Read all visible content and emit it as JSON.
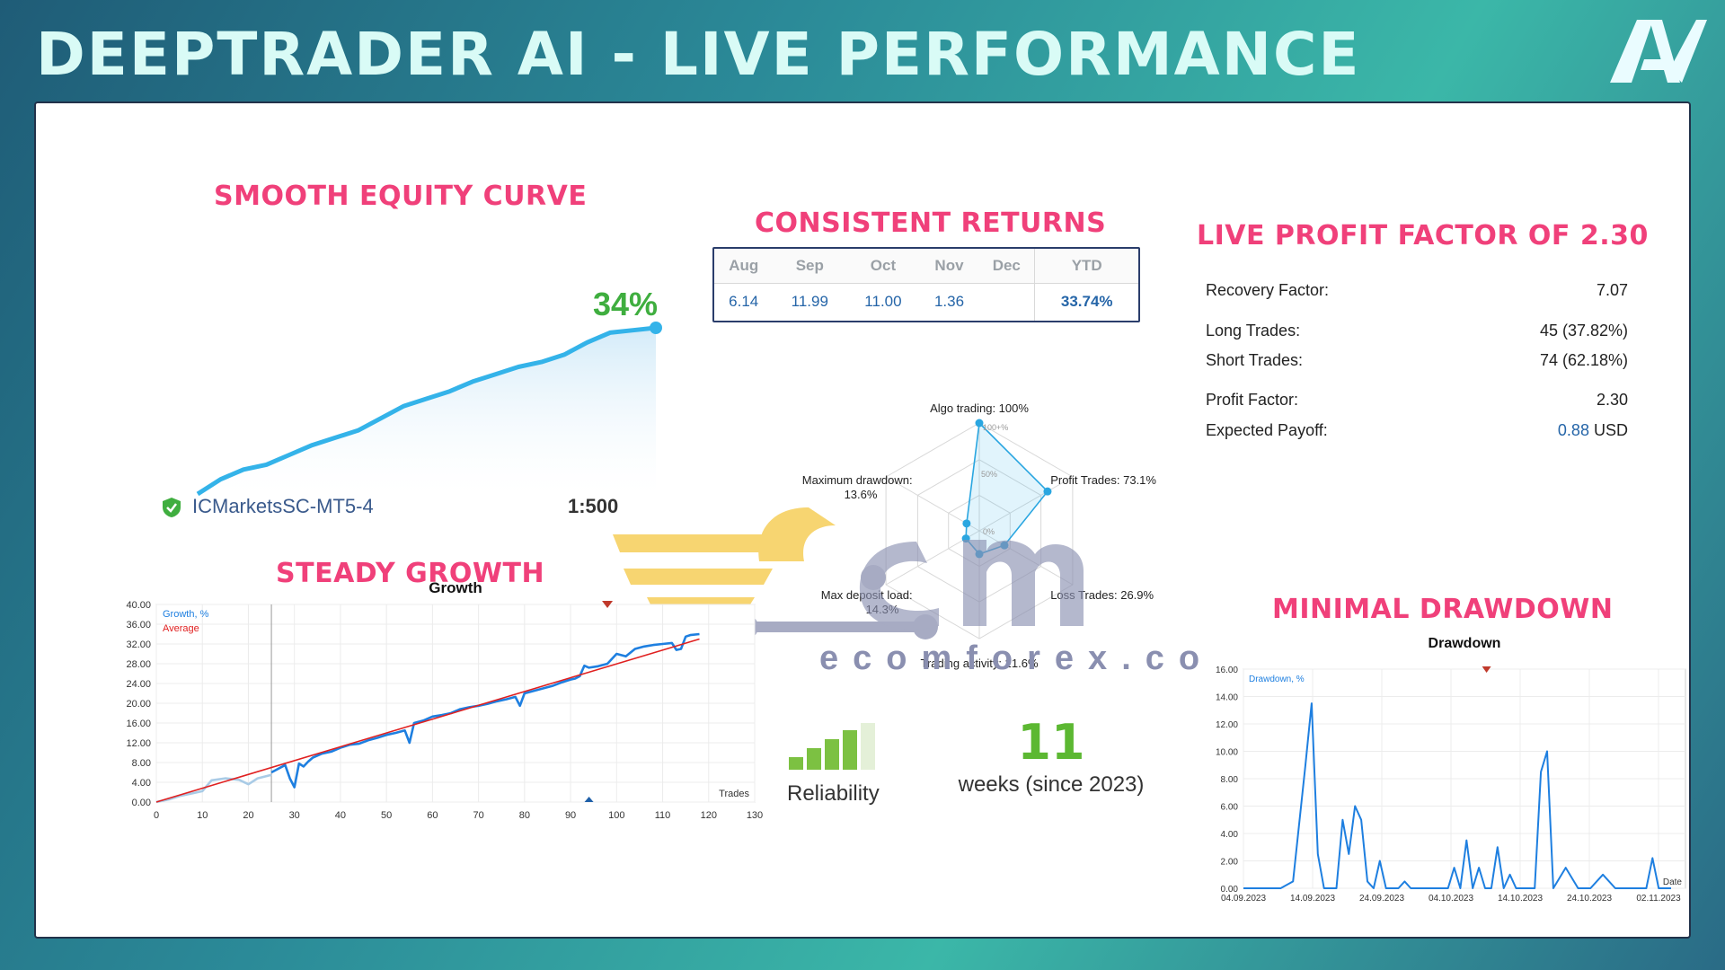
{
  "header": {
    "title": "DEEPTRADER AI - LIVE PERFORMANCE",
    "logo": "AV"
  },
  "sections": {
    "equity": "SMOOTH EQUITY CURVE",
    "returns": "CONSISTENT RETURNS",
    "profit_factor": "LIVE PROFIT FACTOR OF 2.30",
    "growth": "STEADY GROWTH",
    "drawdown": "MINIMAL DRAWDOWN"
  },
  "equity": {
    "percent": "34%",
    "broker": "ICMarketsSC-MT5-4",
    "leverage": "1:500"
  },
  "returns": {
    "headers": [
      "Aug",
      "Sep",
      "Oct",
      "Nov",
      "Dec",
      "YTD"
    ],
    "values": [
      "6.14",
      "11.99",
      "11.00",
      "1.36",
      "",
      "33.74%"
    ]
  },
  "stats": {
    "recovery_label": "Recovery Factor:",
    "recovery_value": "7.07",
    "long_label": "Long Trades:",
    "long_value": "45 (37.82%)",
    "short_label": "Short Trades:",
    "short_value": "74 (62.18%)",
    "pf_label": "Profit Factor:",
    "pf_value": "2.30",
    "payoff_label": "Expected Payoff:",
    "payoff_value": "0.88",
    "payoff_unit": "USD"
  },
  "radar": {
    "algo": "Algo trading: 100%",
    "profit": "Profit Trades: 73.1%",
    "loss": "Loss Trades: 26.9%",
    "activity": "Trading activity: 21.6%",
    "deposit_l1": "Max deposit load:",
    "deposit_l2": "14.3%",
    "maxdd_l1": "Maximum drawdown:",
    "maxdd_l2": "13.6%",
    "ring_100": "100+%",
    "ring_50": "50%",
    "ring_0": "0%"
  },
  "watermark": {
    "text": "ecomforex.com"
  },
  "reliability": {
    "label": "Reliability",
    "bars_filled": 4,
    "bars_total": 5
  },
  "weeks": {
    "value": "11",
    "label": "weeks (since 2023)"
  },
  "colors": {
    "accent_pink": "#f0407a",
    "equity_blue": "#34b3e9",
    "growth_blue": "#1e7fe0",
    "average_red": "#e02020",
    "reliability_green": "#7cc142",
    "weeks_green": "#5cb832",
    "percent_green": "#3fae3f"
  },
  "chart_data": [
    {
      "type": "area",
      "name": "equity",
      "title": "SMOOTH EQUITY CURVE",
      "x": [
        0,
        1,
        2,
        3,
        4,
        5,
        6,
        7,
        8,
        9,
        10,
        11,
        12,
        13,
        14,
        15,
        16,
        17,
        18,
        19,
        20
      ],
      "y": [
        0,
        3,
        5,
        6,
        8,
        10,
        11.5,
        13,
        15.5,
        18,
        19.5,
        21,
        23,
        24.5,
        26,
        27,
        28.5,
        31,
        33,
        33.5,
        34
      ],
      "end_label": "34%"
    },
    {
      "type": "line",
      "title": "Growth",
      "xlabel": "Trades",
      "xlim": [
        0,
        130
      ],
      "ylim": [
        0,
        40
      ],
      "xticks": [
        "0",
        "10",
        "20",
        "30",
        "40",
        "50",
        "60",
        "70",
        "80",
        "90",
        "100",
        "110",
        "120",
        "130"
      ],
      "yticks": [
        "0.00",
        "4.00",
        "8.00",
        "12.00",
        "16.00",
        "20.00",
        "24.00",
        "28.00",
        "32.00",
        "36.00",
        "40.00"
      ],
      "legend": [
        "Growth, %",
        "Average"
      ],
      "series": [
        {
          "name": "Growth, %",
          "x": [
            0,
            3,
            5,
            8,
            10,
            12,
            15,
            18,
            20,
            22,
            25
          ],
          "y": [
            0,
            0.6,
            1.2,
            1.8,
            2.2,
            4.4,
            4.8,
            4.5,
            3.6,
            4.8,
            5.5
          ],
          "color": "#a9cbe6"
        },
        {
          "name": "Growth, %",
          "x": [
            25,
            28,
            29,
            30,
            31,
            32,
            33,
            34,
            36,
            38,
            40,
            42,
            44,
            46,
            48,
            50,
            52,
            54,
            55,
            56,
            58,
            60,
            62,
            64,
            66,
            68,
            70,
            72,
            74,
            76,
            78,
            79,
            80,
            82,
            84,
            86,
            88,
            90,
            91,
            92,
            93,
            94,
            96,
            98,
            100,
            102,
            104,
            106,
            108,
            110,
            112,
            113,
            114,
            115,
            116,
            118
          ],
          "y": [
            6.0,
            7.5,
            4.8,
            3.0,
            7.8,
            7.2,
            8.2,
            9.0,
            9.8,
            10.2,
            11.0,
            11.6,
            11.8,
            12.5,
            13.0,
            13.6,
            14.0,
            14.5,
            12.0,
            16.0,
            16.5,
            17.3,
            17.6,
            18.0,
            18.8,
            19.2,
            19.5,
            19.9,
            20.4,
            20.8,
            21.3,
            19.5,
            22.0,
            22.5,
            23.0,
            23.5,
            24.2,
            24.8,
            25.0,
            25.5,
            27.6,
            27.2,
            27.5,
            28.0,
            30.0,
            29.5,
            31.0,
            31.5,
            31.8,
            32.0,
            32.2,
            30.8,
            31.0,
            33.5,
            33.8,
            34.0
          ],
          "color": "#1e7fe0"
        },
        {
          "name": "Average",
          "x": [
            0,
            118
          ],
          "y": [
            0,
            33.0
          ],
          "color": "#e02020"
        }
      ]
    },
    {
      "type": "line",
      "title": "Drawdown",
      "xlabel": "Date",
      "ylim": [
        0,
        16
      ],
      "xticks": [
        "04.09.2023",
        "14.09.2023",
        "24.09.2023",
        "04.10.2023",
        "14.10.2023",
        "24.10.2023",
        "02.11.2023"
      ],
      "yticks": [
        "0.00",
        "2.00",
        "4.00",
        "6.00",
        "8.00",
        "10.00",
        "12.00",
        "14.00",
        "16.00"
      ],
      "legend": [
        "Drawdown, %"
      ],
      "series": [
        {
          "name": "Drawdown, %",
          "x": [
            0,
            2,
            4,
            6,
            8,
            10,
            11,
            12,
            13,
            14,
            15,
            16,
            17,
            18,
            19,
            20,
            21,
            22,
            23,
            24,
            25,
            26,
            27,
            28,
            29,
            30,
            31,
            32,
            33,
            34,
            35,
            36,
            37,
            38,
            39,
            40,
            41,
            42,
            43,
            44,
            45,
            46,
            47,
            48,
            49,
            50,
            52,
            54,
            56,
            58,
            60,
            62,
            63,
            64,
            65,
            66,
            67,
            68,
            69
          ],
          "y": [
            0,
            0,
            0,
            0,
            0.5,
            9.0,
            13.5,
            2.5,
            0,
            0,
            0,
            5.0,
            2.5,
            6.0,
            5.0,
            0.5,
            0,
            2.0,
            0,
            0,
            0,
            0.5,
            0,
            0,
            0,
            0,
            0,
            0,
            0,
            1.5,
            0,
            3.5,
            0,
            1.5,
            0,
            0,
            3.0,
            0,
            1.0,
            0,
            0,
            0,
            0,
            8.5,
            10.0,
            0,
            1.5,
            0,
            0,
            1.0,
            0,
            0,
            0,
            0,
            0,
            2.2,
            0,
            0,
            0
          ]
        }
      ]
    },
    {
      "type": "radar",
      "axes": [
        "Algo trading",
        "Profit Trades",
        "Loss Trades",
        "Trading activity",
        "Max deposit load",
        "Maximum drawdown"
      ],
      "values": [
        100,
        73.1,
        26.9,
        21.6,
        14.3,
        13.6
      ]
    }
  ]
}
